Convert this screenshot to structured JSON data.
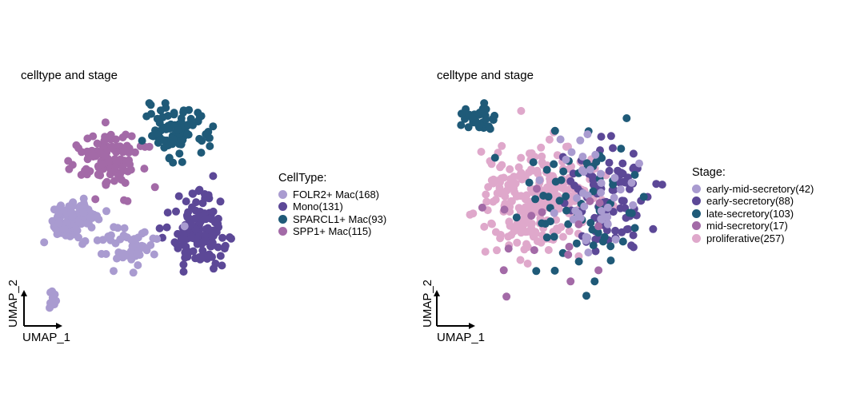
{
  "chart_data": [
    {
      "type": "scatter",
      "title": "celltype and stage",
      "xlabel": "UMAP_1",
      "ylabel": "UMAP_2",
      "legend": {
        "title": "CellType:",
        "placement": "right",
        "entries": [
          {
            "label": "FOLR2+ Mac(168)",
            "color": "#a99bd0"
          },
          {
            "label": "Mono(131)",
            "color": "#5c4897"
          },
          {
            "label": "SPARCL1+ Mac(93)",
            "color": "#1f5a78"
          },
          {
            "label": "SPP1+ Mac(115)",
            "color": "#a36aa7"
          }
        ]
      },
      "clusters": [
        {
          "series": "FOLR2+ Mac(168)",
          "center": [
            -3.6,
            -0.5
          ],
          "spread": [
            1.1,
            0.75
          ],
          "n": 110
        },
        {
          "series": "FOLR2+ Mac(168)",
          "center": [
            -0.6,
            -1.6
          ],
          "spread": [
            1.6,
            0.9
          ],
          "n": 48
        },
        {
          "series": "FOLR2+ Mac(168)",
          "center": [
            -4.7,
            -3.7
          ],
          "spread": [
            0.35,
            0.55
          ],
          "n": 10
        },
        {
          "series": "Mono(131)",
          "center": [
            3.1,
            -0.9
          ],
          "spread": [
            1.3,
            1.6
          ],
          "n": 131
        },
        {
          "series": "SPARCL1+ Mac(93)",
          "center": [
            1.9,
            3.2
          ],
          "spread": [
            1.4,
            1.0
          ],
          "n": 93
        },
        {
          "series": "SPP1+ Mac(115)",
          "center": [
            -1.6,
            2.0
          ],
          "spread": [
            1.7,
            1.1
          ],
          "n": 115
        }
      ]
    },
    {
      "type": "scatter",
      "title": "celltype and stage",
      "xlabel": "UMAP_1",
      "ylabel": "UMAP_2",
      "legend": {
        "title": "Stage:",
        "placement": "right",
        "entries": [
          {
            "label": "early-mid-secretory(42)",
            "color": "#a99bd0"
          },
          {
            "label": "early-secretory(88)",
            "color": "#5c4897"
          },
          {
            "label": "late-secretory(103)",
            "color": "#1f5a78"
          },
          {
            "label": "mid-secretory(17)",
            "color": "#a36aa7"
          },
          {
            "label": "proliferative(257)",
            "color": "#dfa8cb"
          }
        ]
      },
      "clusters": [
        {
          "series": "proliferative(257)",
          "center": [
            -1.4,
            0.3
          ],
          "spread": [
            2.6,
            1.9
          ],
          "n": 257
        },
        {
          "series": "late-secretory(103)",
          "center": [
            -4.2,
            3.6
          ],
          "spread": [
            0.9,
            0.6
          ],
          "n": 35
        },
        {
          "series": "late-secretory(103)",
          "center": [
            1.0,
            -0.2
          ],
          "spread": [
            2.8,
            2.3
          ],
          "n": 68
        },
        {
          "series": "early-secretory(88)",
          "center": [
            2.4,
            0.4
          ],
          "spread": [
            1.8,
            2.0
          ],
          "n": 88
        },
        {
          "series": "early-mid-secretory(42)",
          "center": [
            1.3,
            0.8
          ],
          "spread": [
            2.2,
            2.0
          ],
          "n": 42
        },
        {
          "series": "mid-secretory(17)",
          "center": [
            -0.5,
            -1.0
          ],
          "spread": [
            3.0,
            2.0
          ],
          "n": 17
        }
      ]
    }
  ]
}
